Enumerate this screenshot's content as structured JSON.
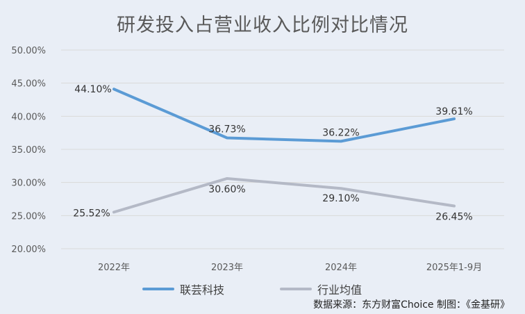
{
  "title": "研发投入占营业收入比例对比情况",
  "source": "数据来源：东方财富Choice   制图：《金基研》",
  "colors": {
    "series_0": "#5b9bd5",
    "series_1": "#b4b9c6",
    "grid": "#d9d9d9",
    "background": "#e9eef6"
  },
  "chart_data": {
    "type": "line",
    "title": "研发投入占营业收入比例对比情况",
    "categories": [
      "2022年",
      "2023年",
      "2024年",
      "2025年1-9月"
    ],
    "series": [
      {
        "name": "联芸科技",
        "values": [
          44.1,
          36.73,
          36.22,
          39.61
        ],
        "labels": [
          "44.10%",
          "36.73%",
          "36.22%",
          "39.61%"
        ]
      },
      {
        "name": "行业均值",
        "values": [
          25.52,
          30.6,
          29.1,
          26.45
        ],
        "labels": [
          "25.52%",
          "30.60%",
          "29.10%",
          "26.45%"
        ]
      }
    ],
    "yticks": [
      "20.00%",
      "25.00%",
      "30.00%",
      "35.00%",
      "40.00%",
      "45.00%",
      "50.00%"
    ],
    "ylim": [
      20,
      50
    ],
    "grid": true,
    "legend_position": "bottom"
  }
}
